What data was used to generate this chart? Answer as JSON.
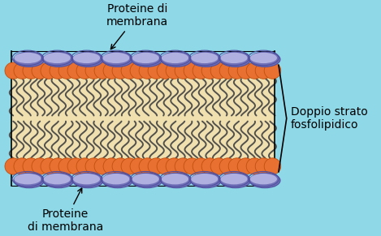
{
  "bg_color": "#8ed8e8",
  "membrane_bg": "#f0e0b0",
  "phospholipid_head_color": "#e87030",
  "phospholipid_head_edge": "#c05010",
  "protein_color_light": "#b0b0e0",
  "protein_color_dark": "#7070b8",
  "protein_edge": "#5050a0",
  "tail_color": "#404040",
  "label_top": "Proteine di\nmembrana",
  "label_bottom": "Proteine\ndi membrana",
  "label_right": "Doppio strato\nfosfolipidico",
  "font_size": 10,
  "fig_width": 4.69,
  "fig_height": 2.91
}
